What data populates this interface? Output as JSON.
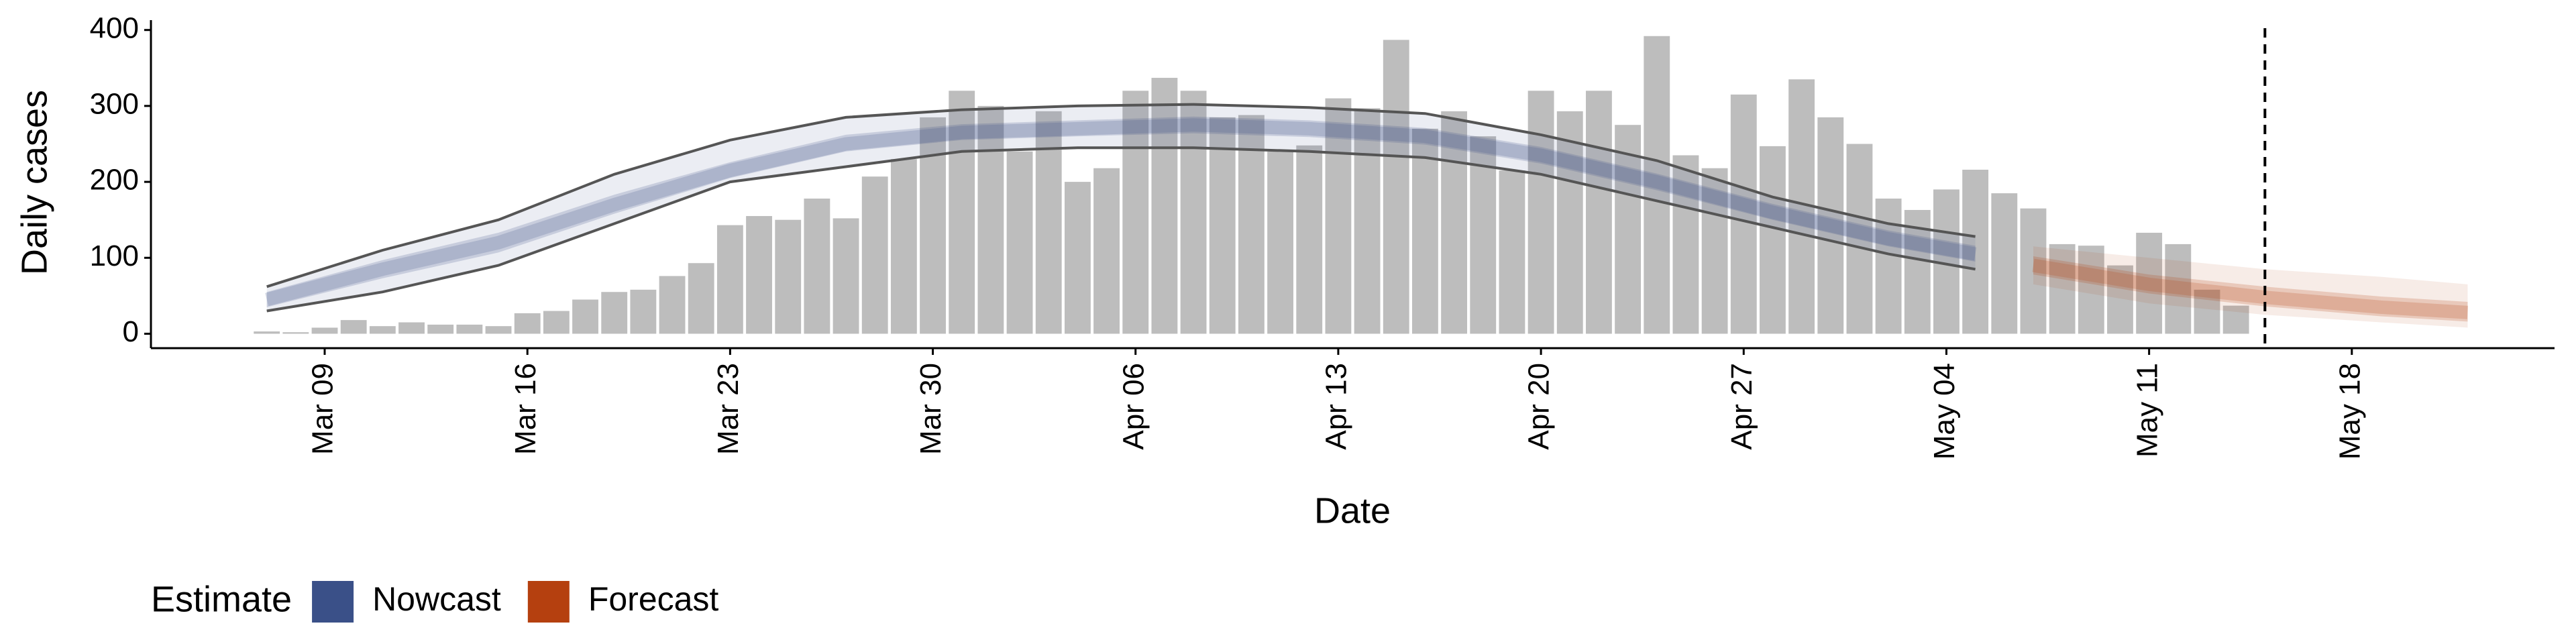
{
  "chart_data": {
    "type": "bar",
    "x_label": "Date",
    "y_label": "Daily cases",
    "bar_color": "#bdbdbd",
    "x": [
      "03-07",
      "03-08",
      "03-09",
      "03-10",
      "03-11",
      "03-12",
      "03-13",
      "03-14",
      "03-15",
      "03-16",
      "03-17",
      "03-18",
      "03-19",
      "03-20",
      "03-21",
      "03-22",
      "03-23",
      "03-24",
      "03-25",
      "03-26",
      "03-27",
      "03-28",
      "03-29",
      "03-30",
      "03-31",
      "04-01",
      "04-02",
      "04-03",
      "04-04",
      "04-05",
      "04-06",
      "04-07",
      "04-08",
      "04-09",
      "04-10",
      "04-11",
      "04-12",
      "04-13",
      "04-14",
      "04-15",
      "04-16",
      "04-17",
      "04-18",
      "04-19",
      "04-20",
      "04-21",
      "04-22",
      "04-23",
      "04-24",
      "04-25",
      "04-26",
      "04-27",
      "04-28",
      "04-29",
      "04-30",
      "05-01",
      "05-02",
      "05-03",
      "05-04",
      "05-05",
      "05-06",
      "05-07",
      "05-08",
      "05-09",
      "05-10",
      "05-11",
      "05-12",
      "05-13",
      "05-14"
    ],
    "values": [
      3,
      2,
      8,
      18,
      10,
      15,
      12,
      12,
      10,
      27,
      30,
      45,
      55,
      58,
      76,
      93,
      143,
      155,
      150,
      178,
      152,
      207,
      230,
      285,
      320,
      300,
      240,
      293,
      200,
      218,
      320,
      337,
      320,
      285,
      288,
      240,
      248,
      310,
      297,
      387,
      270,
      293,
      260,
      215,
      320,
      293,
      320,
      275,
      392,
      235,
      218,
      315,
      247,
      335,
      285,
      250,
      178,
      163,
      190,
      216,
      185,
      165,
      118,
      116,
      90,
      133,
      118,
      58,
      37
    ],
    "estimates": [
      {
        "name": "Nowcast",
        "color": "#3a5088",
        "line_color": "#555555",
        "x": [
          "03-07",
          "03-11",
          "03-15",
          "03-19",
          "03-23",
          "03-27",
          "03-31",
          "04-04",
          "04-08",
          "04-12",
          "04-16",
          "04-20",
          "04-24",
          "04-28",
          "05-02",
          "05-05"
        ],
        "values": [
          45,
          85,
          120,
          170,
          215,
          250,
          265,
          270,
          275,
          270,
          260,
          235,
          200,
          160,
          125,
          105
        ],
        "lower_50": [
          35,
          73,
          107,
          158,
          205,
          240,
          255,
          260,
          264,
          259,
          249,
          224,
          189,
          150,
          115,
          95
        ],
        "upper_50": [
          55,
          97,
          133,
          183,
          226,
          262,
          276,
          281,
          286,
          281,
          271,
          246,
          211,
          171,
          136,
          116
        ],
        "lower_90": [
          30,
          55,
          90,
          145,
          200,
          220,
          240,
          245,
          245,
          240,
          232,
          210,
          175,
          140,
          105,
          85
        ],
        "upper_90": [
          62,
          110,
          150,
          210,
          255,
          285,
          295,
          300,
          302,
          298,
          290,
          262,
          228,
          180,
          145,
          128
        ]
      },
      {
        "name": "Forecast",
        "color": "#b5400f",
        "x": [
          "05-07",
          "05-11",
          "05-15",
          "05-19",
          "05-22"
        ],
        "values": [
          90,
          65,
          48,
          35,
          28
        ],
        "lower_50": [
          78,
          53,
          36,
          23,
          16
        ],
        "upper_50": [
          102,
          78,
          62,
          49,
          42
        ],
        "lower_90": [
          65,
          40,
          25,
          15,
          8
        ],
        "upper_90": [
          115,
          100,
          85,
          75,
          65
        ]
      }
    ],
    "vline_x": "05-15",
    "xlim": [
      "03-03",
      "05-25"
    ],
    "xticks": [
      {
        "value": "03-09",
        "label": "Mar 09"
      },
      {
        "value": "03-16",
        "label": "Mar 16"
      },
      {
        "value": "03-23",
        "label": "Mar 23"
      },
      {
        "value": "03-30",
        "label": "Mar 30"
      },
      {
        "value": "04-06",
        "label": "Apr 06"
      },
      {
        "value": "04-13",
        "label": "Apr 13"
      },
      {
        "value": "04-20",
        "label": "Apr 20"
      },
      {
        "value": "04-27",
        "label": "Apr 27"
      },
      {
        "value": "05-04",
        "label": "May 04"
      },
      {
        "value": "05-11",
        "label": "May 11"
      },
      {
        "value": "05-18",
        "label": "May 18"
      }
    ],
    "ylim": [
      -19,
      413
    ],
    "yticks": [
      0,
      100,
      200,
      300,
      400
    ],
    "legend_title": "Estimate",
    "legend_position": "bottom"
  }
}
